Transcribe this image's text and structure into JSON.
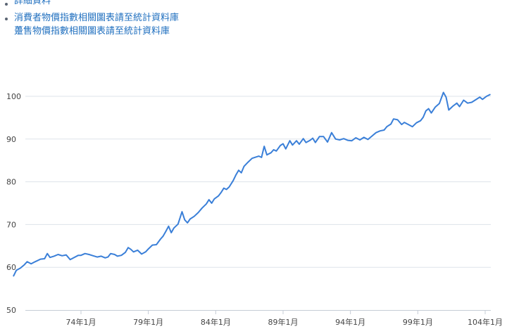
{
  "links": [
    {
      "label": "詳細資料"
    },
    {
      "label": "消費者物價指數相關圖表請至統計資料庫"
    },
    {
      "label": "躉售物價指數相關圖表請至統計資料庫"
    }
  ],
  "colors": {
    "line": "#3a7fd8",
    "grid": "#dde3ea",
    "link": "#1f6fbf"
  },
  "chart_data": {
    "type": "line",
    "title": "",
    "xlabel": "",
    "ylabel": "",
    "ylim": [
      50,
      108
    ],
    "xlim": [
      69.0,
      104.35
    ],
    "y_ticks": [
      50,
      60,
      70,
      80,
      90,
      100
    ],
    "x_ticks": [
      {
        "x": 74,
        "label": "74年1月"
      },
      {
        "x": 79,
        "label": "79年1月"
      },
      {
        "x": 84,
        "label": "84年1月"
      },
      {
        "x": 89,
        "label": "89年1月"
      },
      {
        "x": 94,
        "label": "94年1月"
      },
      {
        "x": 99,
        "label": "99年1月"
      },
      {
        "x": 104,
        "label": "104年1月"
      }
    ],
    "grid": "horizontal",
    "series": [
      {
        "points": [
          [
            69.0,
            58.0
          ],
          [
            69.2,
            59.3
          ],
          [
            69.5,
            59.8
          ],
          [
            69.8,
            60.6
          ],
          [
            70.0,
            61.3
          ],
          [
            70.3,
            60.8
          ],
          [
            70.6,
            61.3
          ],
          [
            71.0,
            61.9
          ],
          [
            71.3,
            62.0
          ],
          [
            71.5,
            63.2
          ],
          [
            71.7,
            62.3
          ],
          [
            72.0,
            62.6
          ],
          [
            72.3,
            63.0
          ],
          [
            72.6,
            62.7
          ],
          [
            72.9,
            62.9
          ],
          [
            73.2,
            61.8
          ],
          [
            73.5,
            62.3
          ],
          [
            73.8,
            62.8
          ],
          [
            74.0,
            62.8
          ],
          [
            74.3,
            63.2
          ],
          [
            74.6,
            63.0
          ],
          [
            74.9,
            62.7
          ],
          [
            75.2,
            62.4
          ],
          [
            75.5,
            62.6
          ],
          [
            75.8,
            62.2
          ],
          [
            76.0,
            62.4
          ],
          [
            76.2,
            63.2
          ],
          [
            76.5,
            63.0
          ],
          [
            76.7,
            62.6
          ],
          [
            77.0,
            62.8
          ],
          [
            77.3,
            63.5
          ],
          [
            77.5,
            64.6
          ],
          [
            77.7,
            64.2
          ],
          [
            77.9,
            63.6
          ],
          [
            78.2,
            64.0
          ],
          [
            78.5,
            63.1
          ],
          [
            78.8,
            63.6
          ],
          [
            79.0,
            64.3
          ],
          [
            79.3,
            65.2
          ],
          [
            79.6,
            65.3
          ],
          [
            79.9,
            66.6
          ],
          [
            80.1,
            67.3
          ],
          [
            80.3,
            68.4
          ],
          [
            80.5,
            69.6
          ],
          [
            80.7,
            68.1
          ],
          [
            80.9,
            69.2
          ],
          [
            81.2,
            70.1
          ],
          [
            81.5,
            73.0
          ],
          [
            81.7,
            71.1
          ],
          [
            81.9,
            70.4
          ],
          [
            82.1,
            71.3
          ],
          [
            82.4,
            71.9
          ],
          [
            82.7,
            72.8
          ],
          [
            83.0,
            73.9
          ],
          [
            83.3,
            74.8
          ],
          [
            83.5,
            75.8
          ],
          [
            83.7,
            75.0
          ],
          [
            83.9,
            76.0
          ],
          [
            84.2,
            76.7
          ],
          [
            84.4,
            77.5
          ],
          [
            84.6,
            78.5
          ],
          [
            84.8,
            78.2
          ],
          [
            85.0,
            78.8
          ],
          [
            85.3,
            80.3
          ],
          [
            85.5,
            81.6
          ],
          [
            85.7,
            82.7
          ],
          [
            85.9,
            82.1
          ],
          [
            86.1,
            83.6
          ],
          [
            86.4,
            84.6
          ],
          [
            86.7,
            85.5
          ],
          [
            87.0,
            85.8
          ],
          [
            87.2,
            86.0
          ],
          [
            87.4,
            85.7
          ],
          [
            87.6,
            88.3
          ],
          [
            87.8,
            86.3
          ],
          [
            88.1,
            86.8
          ],
          [
            88.3,
            87.5
          ],
          [
            88.5,
            87.2
          ],
          [
            88.8,
            88.5
          ],
          [
            89.0,
            88.9
          ],
          [
            89.2,
            87.7
          ],
          [
            89.5,
            89.6
          ],
          [
            89.7,
            88.6
          ],
          [
            90.0,
            89.6
          ],
          [
            90.2,
            88.8
          ],
          [
            90.5,
            90.1
          ],
          [
            90.7,
            89.2
          ],
          [
            91.0,
            89.7
          ],
          [
            91.2,
            90.2
          ],
          [
            91.4,
            89.2
          ],
          [
            91.7,
            90.6
          ],
          [
            92.0,
            90.6
          ],
          [
            92.3,
            89.3
          ],
          [
            92.6,
            91.5
          ],
          [
            92.9,
            90.0
          ],
          [
            93.2,
            89.8
          ],
          [
            93.5,
            90.1
          ],
          [
            93.8,
            89.7
          ],
          [
            94.1,
            89.6
          ],
          [
            94.4,
            90.3
          ],
          [
            94.7,
            89.8
          ],
          [
            95.0,
            90.4
          ],
          [
            95.3,
            89.9
          ],
          [
            95.6,
            90.7
          ],
          [
            95.9,
            91.5
          ],
          [
            96.2,
            91.9
          ],
          [
            96.5,
            92.1
          ],
          [
            96.7,
            92.9
          ],
          [
            97.0,
            93.5
          ],
          [
            97.2,
            94.7
          ],
          [
            97.5,
            94.5
          ],
          [
            97.8,
            93.4
          ],
          [
            98.0,
            93.9
          ],
          [
            98.3,
            93.4
          ],
          [
            98.6,
            92.9
          ],
          [
            98.9,
            93.8
          ],
          [
            99.2,
            94.3
          ],
          [
            99.4,
            95.1
          ],
          [
            99.6,
            96.6
          ],
          [
            99.8,
            97.1
          ],
          [
            100.0,
            96.1
          ],
          [
            100.3,
            97.5
          ],
          [
            100.6,
            98.3
          ],
          [
            100.9,
            100.9
          ],
          [
            101.1,
            99.8
          ],
          [
            101.3,
            96.8
          ],
          [
            101.6,
            97.7
          ],
          [
            101.9,
            98.4
          ],
          [
            102.1,
            97.6
          ],
          [
            102.4,
            99.1
          ],
          [
            102.7,
            98.4
          ],
          [
            103.0,
            98.6
          ],
          [
            103.3,
            99.2
          ],
          [
            103.6,
            99.8
          ],
          [
            103.8,
            99.3
          ],
          [
            104.1,
            100.0
          ],
          [
            104.35,
            100.4
          ]
        ]
      }
    ]
  }
}
